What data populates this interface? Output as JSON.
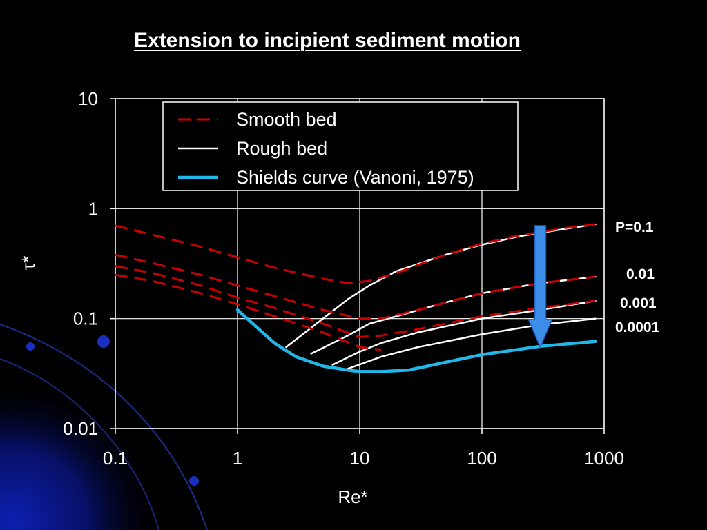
{
  "slide": {
    "title": "Extension to incipient sediment motion"
  },
  "colors": {
    "background": "#000000",
    "smooth": "#cc0000",
    "rough": "#ffffff",
    "shields": "#1fb8e8",
    "arrow": "#3c8ee8",
    "corner_glow": "#0a1a9a"
  },
  "chart_data": {
    "type": "line",
    "xlabel": "Re*",
    "ylabel": "τ*",
    "xscale": "log",
    "yscale": "log",
    "xlim": [
      0.1,
      1000
    ],
    "ylim": [
      0.01,
      10
    ],
    "xticks": [
      "0.1",
      "1",
      "10",
      "100",
      "1000"
    ],
    "yticks": [
      "0.01",
      "0.1",
      "1",
      "10"
    ],
    "grid": true,
    "legend_placement": "top",
    "legend": [
      "Smooth bed",
      "Rough bed",
      "Shields curve (Vanoni, 1975)"
    ],
    "series": [
      {
        "name": "Smooth bed",
        "group": "P=0.1",
        "style": "dashed",
        "x": [
          0.1,
          0.2,
          0.5,
          1,
          2,
          5,
          8,
          12,
          20,
          50,
          100,
          200,
          500,
          850
        ],
        "y": [
          0.7,
          0.58,
          0.45,
          0.36,
          0.29,
          0.23,
          0.21,
          0.22,
          0.26,
          0.38,
          0.48,
          0.57,
          0.67,
          0.72
        ]
      },
      {
        "name": "Smooth bed",
        "group": "0.01",
        "style": "dashed",
        "x": [
          0.1,
          0.2,
          0.5,
          1,
          2,
          5,
          10,
          15,
          30,
          100,
          300,
          850
        ],
        "y": [
          0.38,
          0.32,
          0.25,
          0.2,
          0.16,
          0.12,
          0.1,
          0.1,
          0.12,
          0.17,
          0.21,
          0.24
        ]
      },
      {
        "name": "Smooth bed",
        "group": "0.001",
        "style": "dashed",
        "x": [
          0.1,
          0.2,
          0.5,
          1,
          2,
          5,
          10,
          15,
          30,
          100,
          300,
          850
        ],
        "y": [
          0.3,
          0.26,
          0.2,
          0.155,
          0.125,
          0.09,
          0.068,
          0.07,
          0.08,
          0.105,
          0.125,
          0.145
        ]
      },
      {
        "name": "Smooth bed",
        "group": "0.0001",
        "style": "dashed",
        "x": [
          0.1,
          0.2,
          0.5,
          1,
          2,
          5,
          10,
          15
        ],
        "y": [
          0.25,
          0.22,
          0.17,
          0.135,
          0.105,
          0.075,
          0.055,
          0.052
        ]
      },
      {
        "name": "Rough bed",
        "group": "P=0.1",
        "style": "solid",
        "x": [
          2.5,
          5,
          8,
          12,
          20,
          50,
          100,
          200,
          500,
          850
        ],
        "y": [
          0.055,
          0.1,
          0.15,
          0.2,
          0.27,
          0.38,
          0.47,
          0.56,
          0.66,
          0.72
        ]
      },
      {
        "name": "Rough bed",
        "group": "0.01",
        "style": "solid",
        "x": [
          4,
          8,
          12,
          20,
          50,
          100,
          300,
          850
        ],
        "y": [
          0.048,
          0.07,
          0.09,
          0.105,
          0.14,
          0.17,
          0.21,
          0.24
        ]
      },
      {
        "name": "Rough bed",
        "group": "0.001",
        "style": "solid",
        "x": [
          6,
          10,
          15,
          30,
          100,
          300,
          850
        ],
        "y": [
          0.038,
          0.05,
          0.06,
          0.075,
          0.1,
          0.12,
          0.145
        ]
      },
      {
        "name": "Rough bed",
        "group": "0.0001",
        "style": "solid",
        "x": [
          8,
          15,
          30,
          100,
          300,
          850
        ],
        "y": [
          0.035,
          0.045,
          0.055,
          0.072,
          0.088,
          0.1
        ]
      },
      {
        "name": "Shields curve (Vanoni, 1975)",
        "style": "thick",
        "x": [
          1,
          2,
          3,
          5,
          8,
          10,
          15,
          25,
          50,
          100,
          300,
          850
        ],
        "y": [
          0.12,
          0.06,
          0.045,
          0.037,
          0.034,
          0.033,
          0.033,
          0.034,
          0.04,
          0.047,
          0.056,
          0.062
        ]
      }
    ],
    "annotations": [
      {
        "text": "P=0.1"
      },
      {
        "text": "0.01"
      },
      {
        "text": "0.001"
      },
      {
        "text": "0.0001"
      }
    ],
    "arrow": {
      "direction": "down",
      "x": 300,
      "y_from": 0.7,
      "y_to": 0.055
    }
  }
}
